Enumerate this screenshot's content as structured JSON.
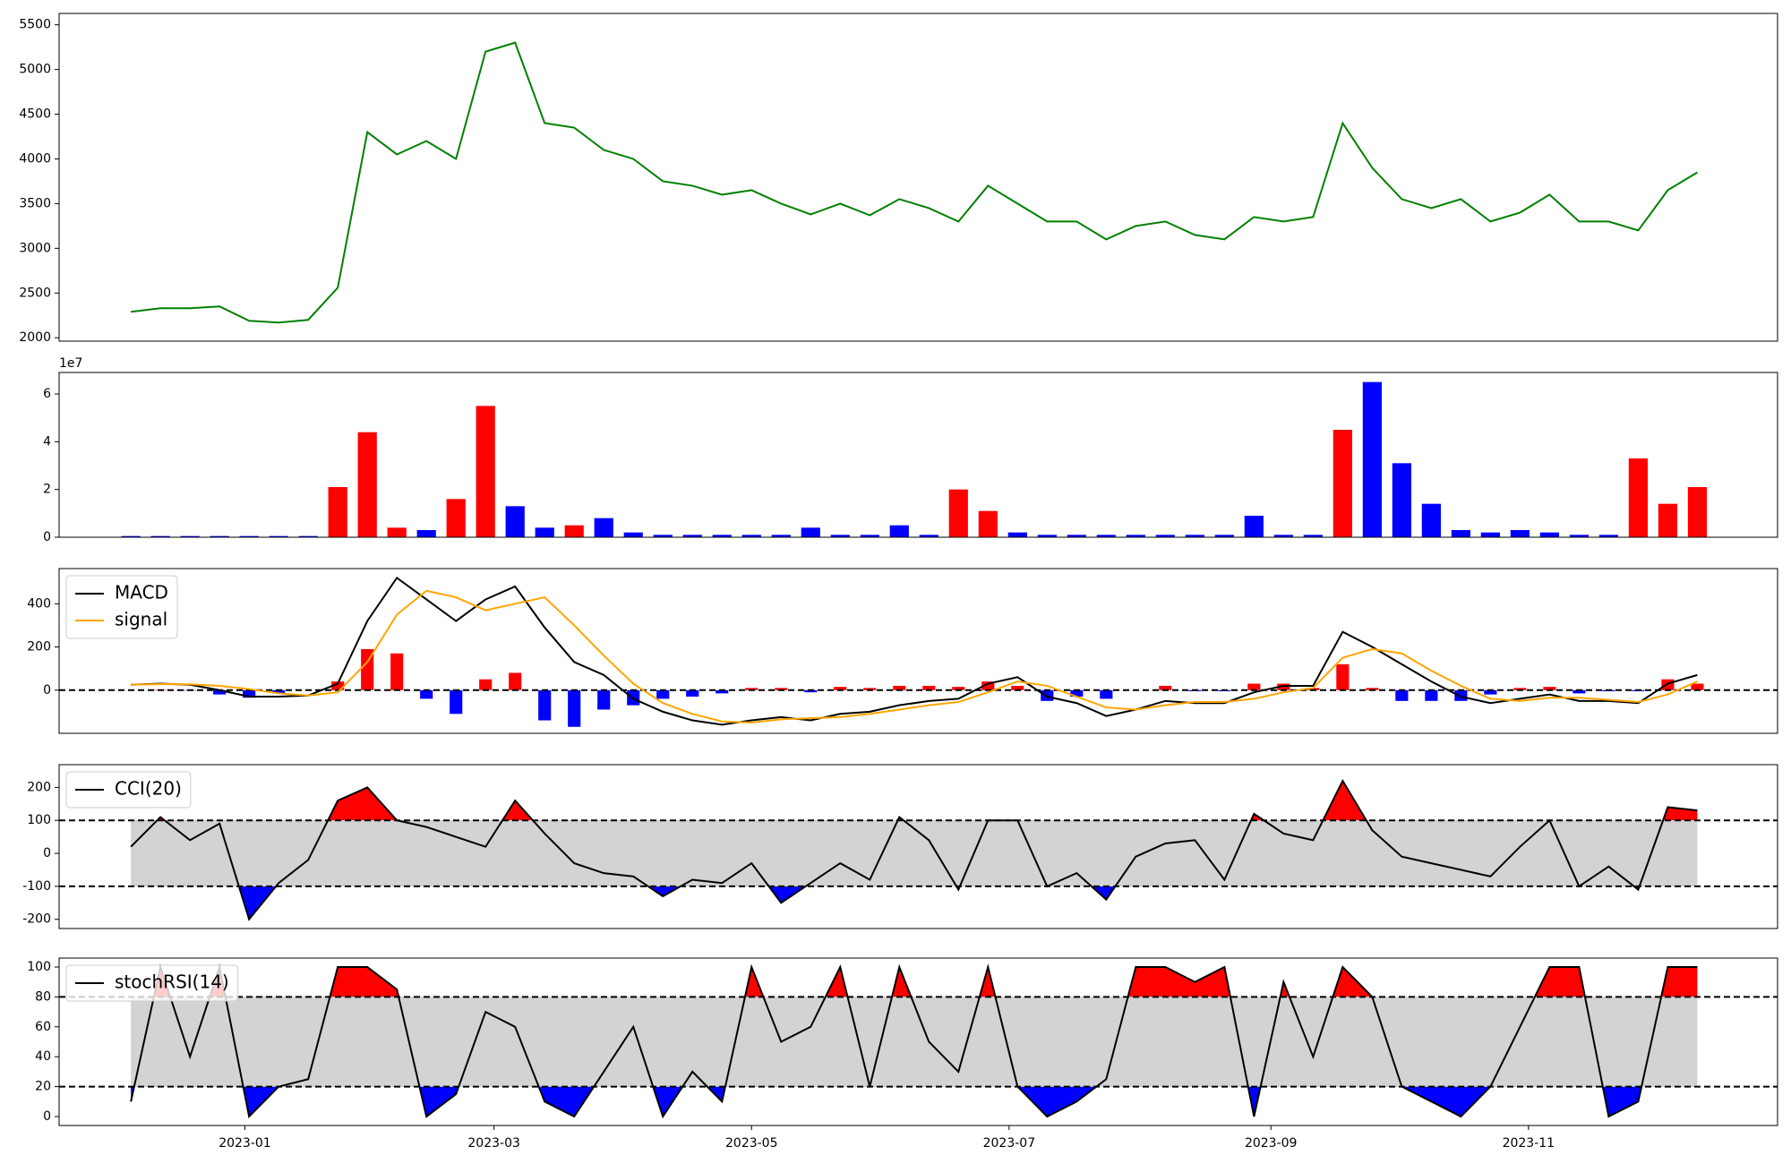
{
  "chart_data": [
    {
      "type": "line",
      "x": [
        "2022-12-05",
        "2022-12-12",
        "2022-12-19",
        "2022-12-26",
        "2023-01-02",
        "2023-01-09",
        "2023-01-16",
        "2023-01-23",
        "2023-01-30",
        "2023-02-06",
        "2023-02-13",
        "2023-02-20",
        "2023-02-27",
        "2023-03-06",
        "2023-03-13",
        "2023-03-20",
        "2023-03-27",
        "2023-04-03",
        "2023-04-10",
        "2023-04-17",
        "2023-04-24",
        "2023-05-01",
        "2023-05-08",
        "2023-05-15",
        "2023-05-22",
        "2023-05-29",
        "2023-06-05",
        "2023-06-12",
        "2023-06-19",
        "2023-06-26",
        "2023-07-03",
        "2023-07-10",
        "2023-07-17",
        "2023-07-24",
        "2023-07-31",
        "2023-08-07",
        "2023-08-14",
        "2023-08-21",
        "2023-08-28",
        "2023-09-04",
        "2023-09-11",
        "2023-09-18",
        "2023-09-25",
        "2023-10-02",
        "2023-10-09",
        "2023-10-16",
        "2023-10-23",
        "2023-10-30",
        "2023-11-06",
        "2023-11-13",
        "2023-11-20",
        "2023-11-27",
        "2023-12-04",
        "2023-12-11"
      ],
      "xlim": [
        "2022-11-18",
        "2023-12-30"
      ],
      "series": [
        {
          "color": "green",
          "values": [
            2290,
            2330,
            2330,
            2350,
            2190,
            2170,
            2200,
            2560,
            4300,
            4050,
            4200,
            4000,
            5200,
            5300,
            4400,
            4350,
            4100,
            4000,
            3750,
            3700,
            3600,
            3650,
            3500,
            3380,
            3500,
            3370,
            3550,
            3450,
            3300,
            3700,
            3500,
            3300,
            3300,
            3100,
            3250,
            3300,
            3150,
            3100,
            3350,
            3300,
            3350,
            4400,
            3900,
            3550,
            3450,
            3550,
            3300,
            3400,
            3600,
            3300,
            3300,
            3200,
            3650,
            3850
          ]
        }
      ],
      "ylim": [
        1962,
        5627
      ],
      "yticks": [
        2000,
        2500,
        3000,
        3500,
        4000,
        4500,
        5000,
        5500
      ]
    },
    {
      "type": "bar",
      "x": [
        "2022-12-05",
        "2022-12-12",
        "2022-12-19",
        "2022-12-26",
        "2023-01-02",
        "2023-01-09",
        "2023-01-16",
        "2023-01-23",
        "2023-01-30",
        "2023-02-06",
        "2023-02-13",
        "2023-02-20",
        "2023-02-27",
        "2023-03-06",
        "2023-03-13",
        "2023-03-20",
        "2023-03-27",
        "2023-04-03",
        "2023-04-10",
        "2023-04-17",
        "2023-04-24",
        "2023-05-01",
        "2023-05-08",
        "2023-05-15",
        "2023-05-22",
        "2023-05-29",
        "2023-06-05",
        "2023-06-12",
        "2023-06-19",
        "2023-06-26",
        "2023-07-03",
        "2023-07-10",
        "2023-07-17",
        "2023-07-24",
        "2023-07-31",
        "2023-08-07",
        "2023-08-14",
        "2023-08-21",
        "2023-08-28",
        "2023-09-04",
        "2023-09-11",
        "2023-09-18",
        "2023-09-25",
        "2023-10-02",
        "2023-10-09",
        "2023-10-16",
        "2023-10-23",
        "2023-10-30",
        "2023-11-06",
        "2023-11-13",
        "2023-11-20",
        "2023-11-27",
        "2023-12-04",
        "2023-12-11"
      ],
      "xlim": [
        "2022-11-18",
        "2023-12-30"
      ],
      "values": [
        0.05,
        0.05,
        0.05,
        0.05,
        0.05,
        0.05,
        0.05,
        2.1,
        4.4,
        0.4,
        0.3,
        1.6,
        5.5,
        1.3,
        0.4,
        0.5,
        0.8,
        0.2,
        0.1,
        0.1,
        0.1,
        0.1,
        0.1,
        0.4,
        0.1,
        0.1,
        0.5,
        0.1,
        2.0,
        1.1,
        0.2,
        0.1,
        0.1,
        0.1,
        0.1,
        0.1,
        0.1,
        0.1,
        0.9,
        0.1,
        0.1,
        4.5,
        6.5,
        3.1,
        1.4,
        0.3,
        0.2,
        0.3,
        0.2,
        0.1,
        0.1,
        3.3,
        1.4,
        2.1
      ],
      "colors": [
        "blue",
        "blue",
        "blue",
        "blue",
        "blue",
        "blue",
        "blue",
        "red",
        "red",
        "red",
        "blue",
        "red",
        "red",
        "blue",
        "blue",
        "red",
        "blue",
        "blue",
        "blue",
        "blue",
        "blue",
        "blue",
        "blue",
        "blue",
        "blue",
        "blue",
        "blue",
        "blue",
        "red",
        "red",
        "blue",
        "blue",
        "blue",
        "blue",
        "blue",
        "blue",
        "blue",
        "blue",
        "blue",
        "blue",
        "blue",
        "red",
        "blue",
        "blue",
        "blue",
        "blue",
        "blue",
        "blue",
        "blue",
        "blue",
        "blue",
        "red",
        "red",
        "red"
      ],
      "offset_label": "1e7",
      "ylim": [
        0,
        6.9
      ],
      "yticks": [
        0,
        2,
        4,
        6
      ]
    },
    {
      "type": "line",
      "x": [
        "2022-12-05",
        "2022-12-12",
        "2022-12-19",
        "2022-12-26",
        "2023-01-02",
        "2023-01-09",
        "2023-01-16",
        "2023-01-23",
        "2023-01-30",
        "2023-02-06",
        "2023-02-13",
        "2023-02-20",
        "2023-02-27",
        "2023-03-06",
        "2023-03-13",
        "2023-03-20",
        "2023-03-27",
        "2023-04-03",
        "2023-04-10",
        "2023-04-17",
        "2023-04-24",
        "2023-05-01",
        "2023-05-08",
        "2023-05-15",
        "2023-05-22",
        "2023-05-29",
        "2023-06-05",
        "2023-06-12",
        "2023-06-19",
        "2023-06-26",
        "2023-07-03",
        "2023-07-10",
        "2023-07-17",
        "2023-07-24",
        "2023-07-31",
        "2023-08-07",
        "2023-08-14",
        "2023-08-21",
        "2023-08-28",
        "2023-09-04",
        "2023-09-11",
        "2023-09-18",
        "2023-09-25",
        "2023-10-02",
        "2023-10-09",
        "2023-10-16",
        "2023-10-23",
        "2023-10-30",
        "2023-11-06",
        "2023-11-13",
        "2023-11-20",
        "2023-11-27",
        "2023-12-04",
        "2023-12-11"
      ],
      "xlim": [
        "2022-11-18",
        "2023-12-30"
      ],
      "series": [
        {
          "name": "MACD",
          "color": "black",
          "values": [
            25,
            30,
            25,
            0,
            -30,
            -30,
            -25,
            30,
            320,
            520,
            420,
            320,
            420,
            480,
            290,
            130,
            70,
            -40,
            -100,
            -140,
            -160,
            -140,
            -125,
            -140,
            -110,
            -100,
            -70,
            -50,
            -40,
            30,
            60,
            -30,
            -60,
            -120,
            -90,
            -50,
            -60,
            -60,
            -10,
            20,
            20,
            270,
            200,
            120,
            40,
            -30,
            -60,
            -40,
            -20,
            -50,
            -50,
            -60,
            30,
            70
          ]
        },
        {
          "name": "signal",
          "color": "orange",
          "values": [
            25,
            28,
            27,
            20,
            5,
            -15,
            -25,
            -10,
            130,
            350,
            460,
            430,
            370,
            400,
            430,
            300,
            160,
            30,
            -60,
            -110,
            -145,
            -150,
            -135,
            -130,
            -125,
            -110,
            -90,
            -70,
            -55,
            -10,
            40,
            20,
            -30,
            -80,
            -90,
            -70,
            -55,
            -55,
            -40,
            -10,
            10,
            150,
            190,
            170,
            90,
            20,
            -40,
            -50,
            -35,
            -35,
            -45,
            -55,
            -20,
            40
          ]
        }
      ],
      "bars": {
        "pos_color": "red",
        "neg_color": "blue",
        "values": [
          0,
          2,
          -2,
          -20,
          -35,
          -15,
          0,
          40,
          190,
          170,
          -40,
          -110,
          50,
          80,
          -140,
          -170,
          -90,
          -70,
          -40,
          -30,
          -15,
          10,
          10,
          -10,
          15,
          10,
          20,
          20,
          15,
          40,
          20,
          -50,
          -30,
          -40,
          0,
          20,
          -5,
          -5,
          30,
          30,
          10,
          120,
          10,
          -50,
          -50,
          -50,
          -20,
          10,
          15,
          -15,
          -5,
          -5,
          50,
          30
        ]
      },
      "hlines": [
        0
      ],
      "legend": "upper left",
      "ylim": [
        -200,
        563
      ],
      "yticks": [
        0,
        200,
        400
      ]
    },
    {
      "type": "line",
      "x": [
        "2022-12-05",
        "2022-12-12",
        "2022-12-19",
        "2022-12-26",
        "2023-01-02",
        "2023-01-09",
        "2023-01-16",
        "2023-01-23",
        "2023-01-30",
        "2023-02-06",
        "2023-02-13",
        "2023-02-20",
        "2023-02-27",
        "2023-03-06",
        "2023-03-13",
        "2023-03-20",
        "2023-03-27",
        "2023-04-03",
        "2023-04-10",
        "2023-04-17",
        "2023-04-24",
        "2023-05-01",
        "2023-05-08",
        "2023-05-15",
        "2023-05-22",
        "2023-05-29",
        "2023-06-05",
        "2023-06-12",
        "2023-06-19",
        "2023-06-26",
        "2023-07-03",
        "2023-07-10",
        "2023-07-17",
        "2023-07-24",
        "2023-07-31",
        "2023-08-07",
        "2023-08-14",
        "2023-08-21",
        "2023-08-28",
        "2023-09-04",
        "2023-09-11",
        "2023-09-18",
        "2023-09-25",
        "2023-10-02",
        "2023-10-09",
        "2023-10-16",
        "2023-10-23",
        "2023-10-30",
        "2023-11-06",
        "2023-11-13",
        "2023-11-20",
        "2023-11-27",
        "2023-12-04",
        "2023-12-11"
      ],
      "xlim": [
        "2022-11-18",
        "2023-12-30"
      ],
      "series": [
        {
          "name": "CCI(20)",
          "color": "black",
          "values": [
            20,
            110,
            40,
            90,
            -200,
            -90,
            -20,
            160,
            200,
            100,
            80,
            50,
            20,
            160,
            60,
            -30,
            -60,
            -70,
            -130,
            -80,
            -90,
            -30,
            -150,
            -90,
            -30,
            -80,
            110,
            40,
            -110,
            100,
            100,
            -100,
            -60,
            -140,
            -10,
            30,
            40,
            -80,
            120,
            60,
            40,
            220,
            70,
            -10,
            -30,
            -50,
            -70,
            20,
            100,
            -100,
            -40,
            -110,
            140,
            130
          ]
        }
      ],
      "band": {
        "lower": -100,
        "upper": 100,
        "fill": "lightgray",
        "upper_color": "red",
        "lower_color": "blue"
      },
      "hlines": [
        -100,
        100
      ],
      "legend": "upper left",
      "ylim": [
        -228,
        269
      ],
      "yticks": [
        -200,
        -100,
        0,
        100,
        200
      ]
    },
    {
      "type": "line",
      "x": [
        "2022-12-05",
        "2022-12-12",
        "2022-12-19",
        "2022-12-26",
        "2023-01-02",
        "2023-01-09",
        "2023-01-16",
        "2023-01-23",
        "2023-01-30",
        "2023-02-06",
        "2023-02-13",
        "2023-02-20",
        "2023-02-27",
        "2023-03-06",
        "2023-03-13",
        "2023-03-20",
        "2023-03-27",
        "2023-04-03",
        "2023-04-10",
        "2023-04-17",
        "2023-04-24",
        "2023-05-01",
        "2023-05-08",
        "2023-05-15",
        "2023-05-22",
        "2023-05-29",
        "2023-06-05",
        "2023-06-12",
        "2023-06-19",
        "2023-06-26",
        "2023-07-03",
        "2023-07-10",
        "2023-07-17",
        "2023-07-24",
        "2023-07-31",
        "2023-08-07",
        "2023-08-14",
        "2023-08-21",
        "2023-08-28",
        "2023-09-04",
        "2023-09-11",
        "2023-09-18",
        "2023-09-25",
        "2023-10-02",
        "2023-10-09",
        "2023-10-16",
        "2023-10-23",
        "2023-10-30",
        "2023-11-06",
        "2023-11-13",
        "2023-11-20",
        "2023-11-27",
        "2023-12-04",
        "2023-12-11"
      ],
      "xlim": [
        "2022-11-18",
        "2023-12-30"
      ],
      "xticks": [
        "2023-01",
        "2023-03",
        "2023-05",
        "2023-07",
        "2023-09",
        "2023-11"
      ],
      "series": [
        {
          "name": "stochRSI(14)",
          "color": "black",
          "values": [
            10,
            100,
            40,
            100,
            0,
            20,
            25,
            100,
            100,
            85,
            0,
            15,
            70,
            60,
            10,
            0,
            30,
            60,
            0,
            30,
            10,
            100,
            50,
            60,
            100,
            20,
            100,
            50,
            30,
            100,
            20,
            0,
            10,
            25,
            100,
            100,
            90,
            100,
            0,
            90,
            40,
            100,
            80,
            20,
            10,
            0,
            20,
            60,
            100,
            100,
            0,
            10,
            100,
            100
          ]
        }
      ],
      "band": {
        "lower": 20,
        "upper": 80,
        "fill": "lightgray",
        "upper_color": "red",
        "lower_color": "blue"
      },
      "hlines": [
        20,
        80
      ],
      "legend": "upper left",
      "ylim": [
        -6,
        106
      ],
      "yticks": [
        0,
        20,
        40,
        60,
        80,
        100
      ]
    }
  ]
}
